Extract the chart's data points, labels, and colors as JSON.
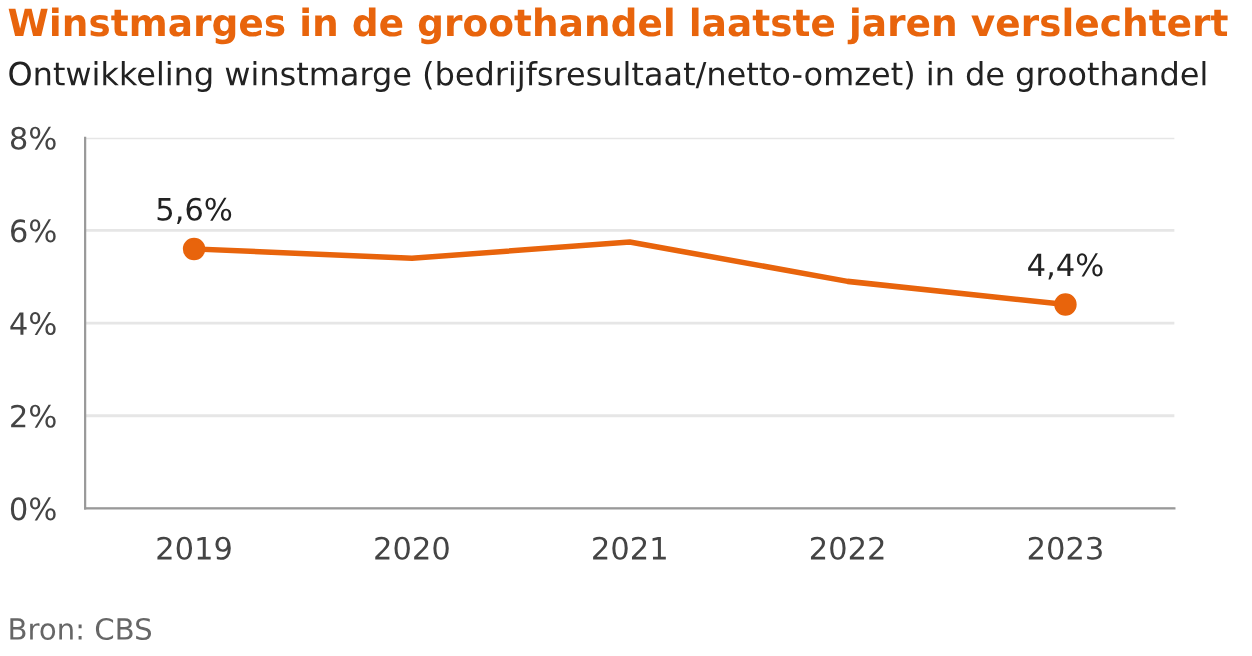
{
  "chart_data": {
    "type": "line",
    "title": "Winstmarges in de groothandel laatste jaren verslechtert",
    "subtitle": "Ontwikkeling winstmarge (bedrijfsresultaat/netto-omzet) in de groothandel",
    "categories": [
      "2019",
      "2020",
      "2021",
      "2022",
      "2023"
    ],
    "series": [
      {
        "color": "#e8640c",
        "values": [
          5.6,
          5.4,
          5.75,
          4.9,
          4.4
        ]
      },
      {
        "type": "scatter",
        "marker": "circle",
        "color": "#e8640c",
        "values": [
          5.6,
          null,
          null,
          null,
          4.4
        ],
        "value_labels": [
          "5,6%",
          null,
          null,
          null,
          "4,4%"
        ]
      }
    ],
    "legend": false,
    "ylim": [
      0,
      8
    ],
    "yticks": [
      {
        "value": 0,
        "label": "0%"
      },
      {
        "value": 2,
        "label": "2%"
      },
      {
        "value": 4,
        "label": "4%"
      },
      {
        "value": 6,
        "label": "6%"
      },
      {
        "value": 8,
        "label": "8%"
      }
    ],
    "grid": "y",
    "annotations": [
      "Bron: CBS"
    ]
  }
}
